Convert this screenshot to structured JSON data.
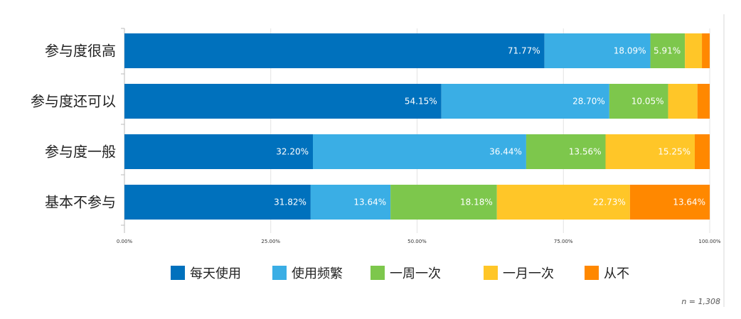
{
  "chart_data": {
    "type": "bar",
    "orientation": "horizontal",
    "stacked": true,
    "categories": [
      "参与度很高",
      "参与度还可以",
      "参与度一般",
      "基本不参与"
    ],
    "series": [
      {
        "name": "每天使用",
        "color": "#0071BD",
        "values": [
          71.77,
          54.15,
          32.2,
          31.82
        ],
        "labels": [
          "71.77%",
          "54.15%",
          "32.20%",
          "31.82%"
        ]
      },
      {
        "name": "使用频繁",
        "color": "#3AAEE5",
        "values": [
          18.09,
          28.7,
          36.44,
          13.64
        ],
        "labels": [
          "18.09%",
          "28.70%",
          "36.44%",
          "13.64%"
        ]
      },
      {
        "name": "一周一次",
        "color": "#7DC74C",
        "values": [
          5.91,
          10.05,
          13.56,
          18.18
        ],
        "labels": [
          "5.91%",
          "10.05%",
          "13.56%",
          "18.18%"
        ]
      },
      {
        "name": "一月一次",
        "color": "#FFC628",
        "values": [
          2.9,
          5.0,
          15.25,
          22.73
        ],
        "labels": [
          "",
          "",
          "15.25%",
          "22.73%"
        ]
      },
      {
        "name": "从不",
        "color": "#FF8800",
        "values": [
          1.33,
          2.1,
          2.55,
          13.64
        ],
        "labels": [
          "",
          "",
          "",
          "13.64%"
        ]
      }
    ],
    "xlim": [
      0,
      100
    ],
    "x_ticks": [
      "0.00%",
      "25.00%",
      "50.00%",
      "75.00%",
      "100.00%"
    ],
    "grid": true,
    "legend_position": "bottom",
    "note": "n = 1,308"
  }
}
